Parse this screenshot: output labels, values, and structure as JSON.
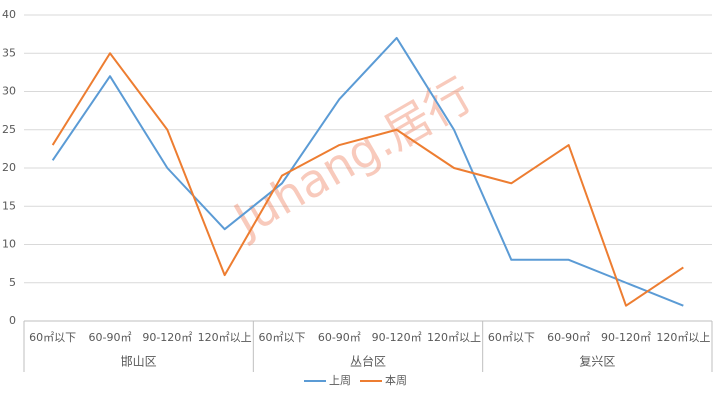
{
  "chart_data": {
    "type": "line",
    "categories": [
      "60㎡以下",
      "60-90㎡",
      "90-120㎡",
      "120㎡以上",
      "60㎡以下",
      "60-90㎡",
      "90-120㎡",
      "120㎡以上",
      "60㎡以下",
      "60-90㎡",
      "90-120㎡",
      "120㎡以上"
    ],
    "groups": [
      "邯山区",
      "丛台区",
      "复兴区"
    ],
    "series": [
      {
        "name": "上周",
        "color": "#5b9bd5",
        "values": [
          21,
          32,
          20,
          12,
          18,
          29,
          37,
          25,
          8,
          8,
          5,
          2
        ]
      },
      {
        "name": "本周",
        "color": "#ed7d31",
        "values": [
          23,
          35,
          25,
          6,
          19,
          23,
          25,
          20,
          18,
          23,
          2,
          7
        ]
      }
    ],
    "ylim": [
      0,
      40
    ],
    "yticks": [
      0,
      5,
      10,
      15,
      20,
      25,
      30,
      35,
      40
    ],
    "grid": true,
    "legend": "bottom",
    "watermark": "Juhang.居行"
  }
}
